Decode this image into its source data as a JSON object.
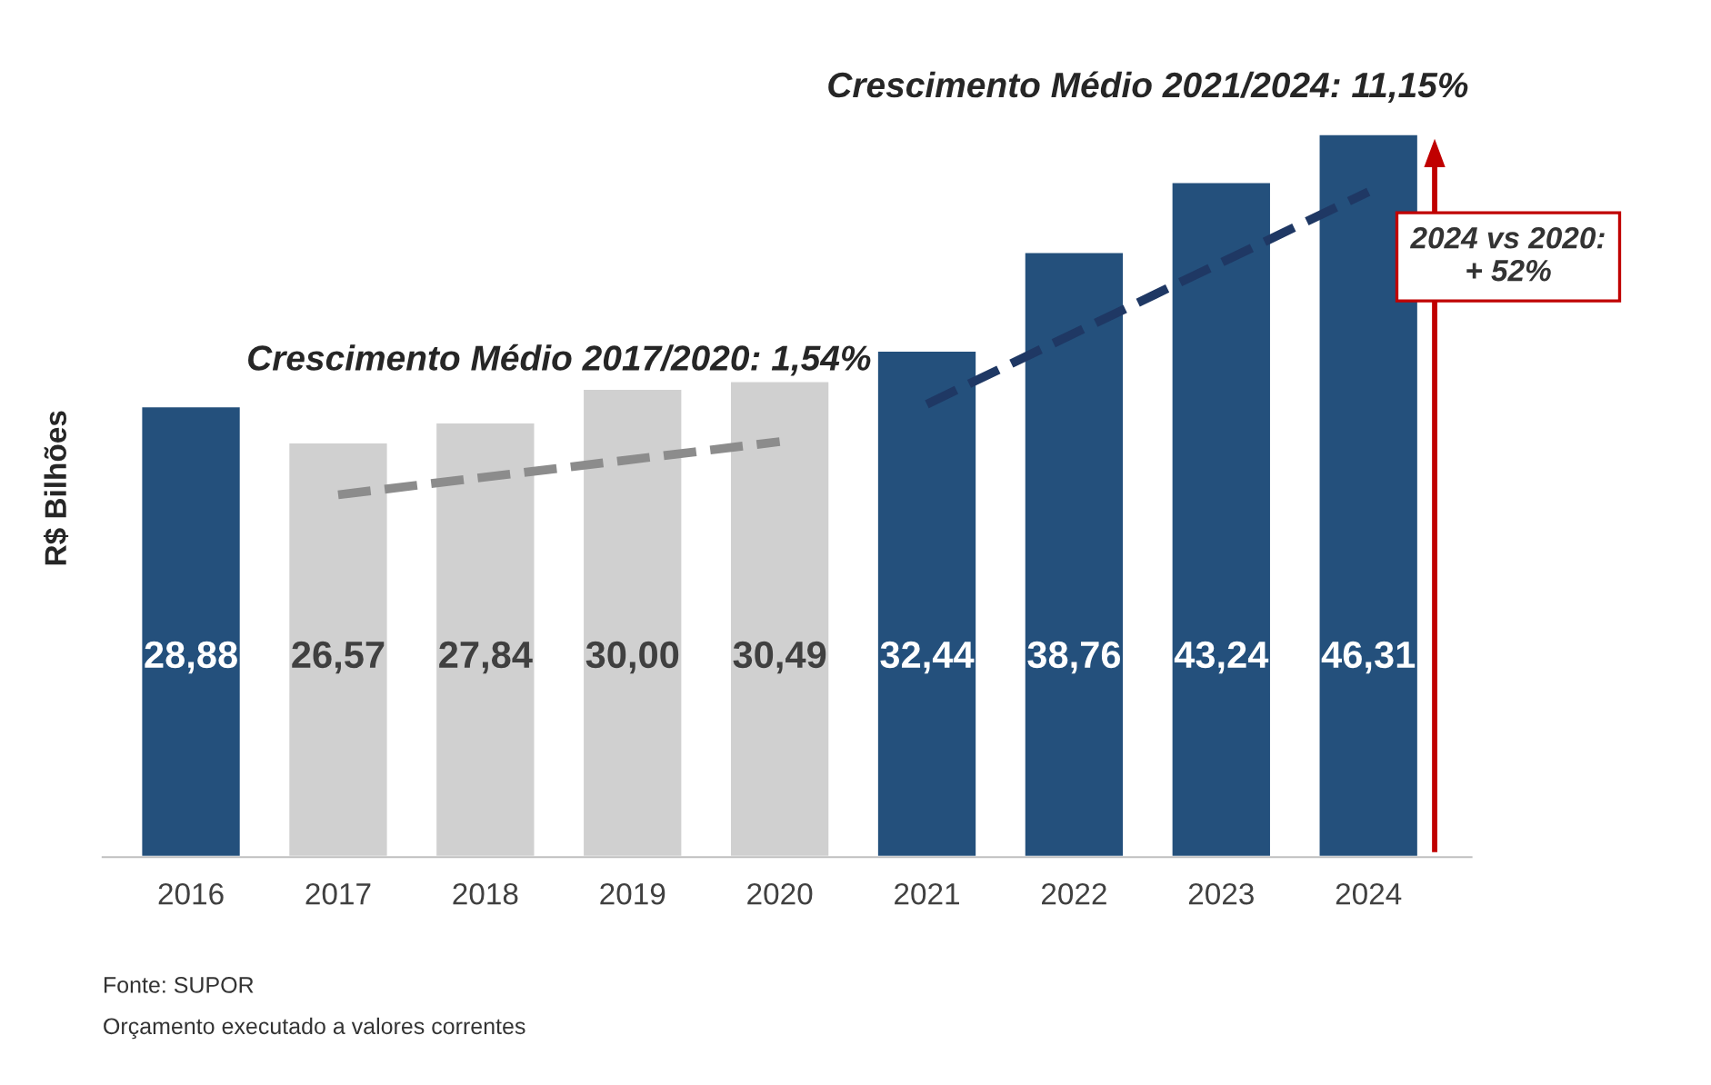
{
  "chart_data": {
    "type": "bar",
    "ylabel": "R$ Bilhões",
    "categories": [
      "2016",
      "2017",
      "2018",
      "2019",
      "2020",
      "2021",
      "2022",
      "2023",
      "2024"
    ],
    "series": [
      {
        "colors": [
          "#24507c",
          "#d0d0d0",
          "#d0d0d0",
          "#d0d0d0",
          "#d0d0d0",
          "#24507c",
          "#24507c",
          "#24507c",
          "#24507c"
        ],
        "values": [
          28.88,
          26.57,
          27.84,
          30.0,
          30.49,
          32.44,
          38.76,
          43.24,
          46.31
        ],
        "value_labels": [
          "28,88",
          "26,57",
          "27,84",
          "30,00",
          "30,49",
          "32,44",
          "38,76",
          "43,24",
          "46,31"
        ]
      },
      {
        "type": "line",
        "values": [
          null,
          23.2,
          null,
          null,
          26.6,
          null,
          null,
          null,
          null
        ],
        "color": "#8c8c8c",
        "line_style": "dashed"
      },
      {
        "type": "line",
        "values": [
          null,
          null,
          null,
          null,
          null,
          29.0,
          null,
          null,
          42.6
        ],
        "color": "#1f3864",
        "line_style": "dashed"
      }
    ],
    "tick_labels": "x",
    "grid": false,
    "legend": false,
    "annotations": [
      "Crescimento Médio 2017/2020: 1,54%",
      "Crescimento Médio 2021/2024: 11,15%",
      "2024 vs 2020:\n+ 52%",
      "Fonte: SUPOR",
      "Orçamento executado a valores correntes"
    ]
  }
}
